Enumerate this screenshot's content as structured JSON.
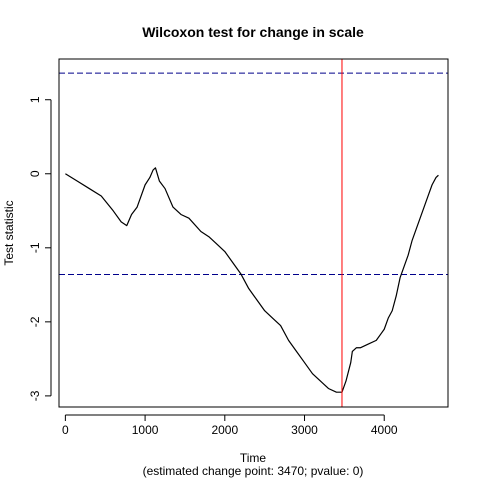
{
  "chart_data": {
    "type": "line",
    "title": "Wilcoxon test for change in scale",
    "xlabel": "Time",
    "subtitle": "(estimated change point: 3470; pvalue: 0)",
    "ylabel": "Test statistic",
    "xlim": [
      -80,
      4800
    ],
    "ylim": [
      -3.15,
      1.55
    ],
    "xticks": [
      0,
      1000,
      2000,
      3000,
      4000
    ],
    "yticks": [
      -3,
      -2,
      -1,
      0,
      1
    ],
    "threshold_lines": [
      1.36,
      -1.36
    ],
    "change_point": 3470,
    "colors": {
      "series": "#000000",
      "threshold": "#00008B",
      "change_point": "#FF0000",
      "frame": "#000000"
    },
    "series": [
      {
        "name": "Test statistic",
        "x": [
          0,
          150,
          300,
          450,
          600,
          700,
          770,
          830,
          900,
          1000,
          1060,
          1100,
          1130,
          1180,
          1250,
          1350,
          1450,
          1550,
          1700,
          1800,
          1900,
          2000,
          2100,
          2200,
          2300,
          2400,
          2500,
          2600,
          2700,
          2800,
          2900,
          3000,
          3100,
          3200,
          3300,
          3400,
          3470,
          3520,
          3580,
          3600,
          3650,
          3700,
          3800,
          3900,
          4000,
          4050,
          4100,
          4150,
          4200,
          4250,
          4300,
          4350,
          4400,
          4450,
          4500,
          4550,
          4600,
          4650,
          4680
        ],
        "y": [
          0.0,
          -0.1,
          -0.2,
          -0.3,
          -0.5,
          -0.65,
          -0.7,
          -0.55,
          -0.45,
          -0.15,
          -0.05,
          0.05,
          0.08,
          -0.1,
          -0.2,
          -0.45,
          -0.55,
          -0.6,
          -0.78,
          -0.85,
          -0.95,
          -1.05,
          -1.2,
          -1.35,
          -1.55,
          -1.7,
          -1.85,
          -1.95,
          -2.05,
          -2.25,
          -2.4,
          -2.55,
          -2.7,
          -2.8,
          -2.9,
          -2.95,
          -2.95,
          -2.8,
          -2.55,
          -2.4,
          -2.35,
          -2.35,
          -2.3,
          -2.25,
          -2.1,
          -1.95,
          -1.85,
          -1.65,
          -1.4,
          -1.25,
          -1.1,
          -0.9,
          -0.75,
          -0.6,
          -0.45,
          -0.3,
          -0.15,
          -0.05,
          -0.02
        ]
      }
    ]
  }
}
